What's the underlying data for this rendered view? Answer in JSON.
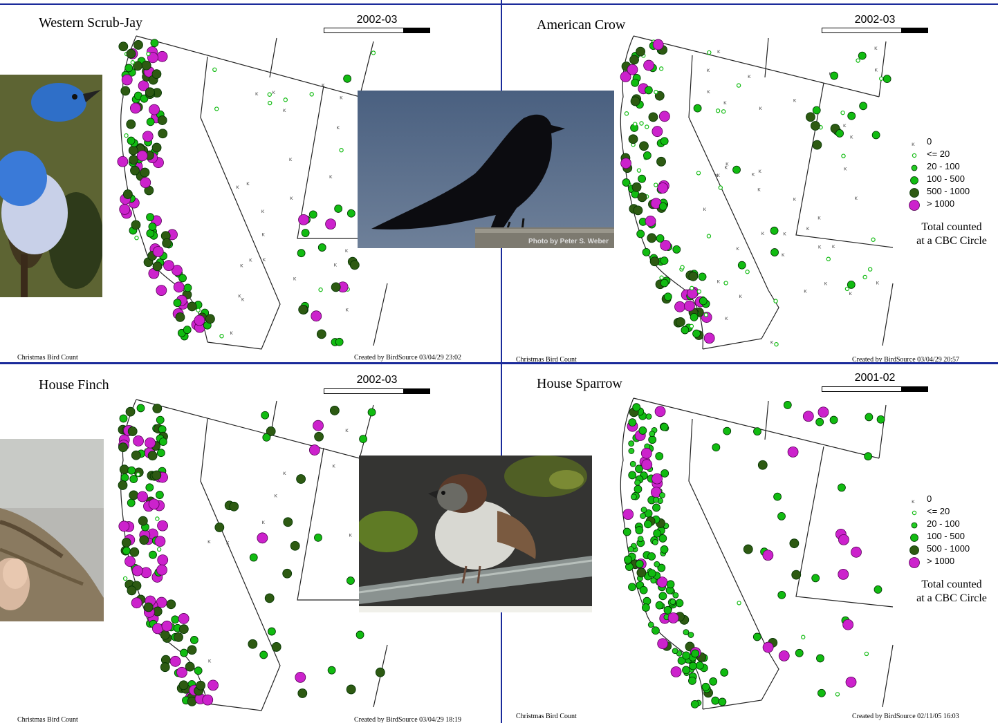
{
  "panels": [
    {
      "id": "jay",
      "title": "Western Scrub-Jay",
      "season": "2002-03",
      "footer_left": "Christmas Bird Count",
      "footer_right": "Created by BirdSource  03/04/29 23:02",
      "legend": false
    },
    {
      "id": "crow",
      "title": "American Crow",
      "season": "2002-03",
      "footer_left": "Christmas Bird Count",
      "footer_right": "Created by BirdSource  03/04/29 20:57",
      "legend": true
    },
    {
      "id": "finch",
      "title": "House Finch",
      "season": "2002-03",
      "footer_left": "Christmas Bird Count",
      "footer_right": "Created by BirdSource  03/04/29 18:19",
      "legend": false
    },
    {
      "id": "sparrow",
      "title": "House Sparrow",
      "season": "2001-02",
      "footer_left": "Christmas Bird Count",
      "footer_right": "Created by BirdSource  02/11/05 16:03",
      "legend": true
    }
  ],
  "legend": {
    "classes": [
      {
        "label": "0",
        "symbol": "tick"
      },
      {
        "label": "<= 20",
        "symbol": "tiny-green"
      },
      {
        "label": "20 - 100",
        "symbol": "small-green"
      },
      {
        "label": "100 - 500",
        "symbol": "medium-green"
      },
      {
        "label": "500 - 1000",
        "symbol": "dark-green"
      },
      {
        "label": "> 1000",
        "symbol": "magenta"
      }
    ],
    "caption_line1": "Total counted",
    "caption_line2": "at a CBC Circle"
  },
  "photos": [
    {
      "id": "jay-photo",
      "caption": ""
    },
    {
      "id": "crow-photo",
      "caption": "Photo by Peter S. Weber"
    },
    {
      "id": "finch-photo",
      "caption": ""
    },
    {
      "id": "sparrow-photo",
      "caption": ""
    }
  ],
  "colors": {
    "tiny": "#22cc22",
    "medium": "#11bb11",
    "dark": "#2d5a12",
    "magenta": "#cc22cc",
    "outline": "#003300",
    "panel_border": "#1a2a9a"
  }
}
